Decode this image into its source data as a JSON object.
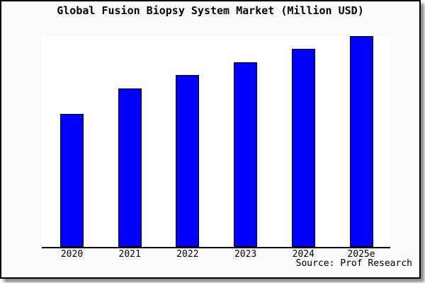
{
  "chart_data": {
    "type": "bar",
    "title": "Global Fusion Biopsy System Market (Million USD)",
    "categories": [
      "2020",
      "2021",
      "2022",
      "2023",
      "2024",
      "2025e"
    ],
    "values": [
      63,
      75.3,
      81.6,
      87.7,
      93.9,
      100
    ],
    "values_note": "No numeric y-axis shown in image; values are relative heights indexed to 2025e = 100",
    "xlabel": "",
    "ylabel": "",
    "ylim": [
      0,
      100.3
    ],
    "grid": false,
    "legend": false,
    "source": "Source: Prof Research"
  },
  "colors": {
    "bar_fill": "#0000ff",
    "bar_border": "#000000",
    "frame_background": "#fafafa",
    "plot_background": "#ffffff",
    "axis_line": "#000000",
    "text": "#000000",
    "frame_border": "#000000",
    "shadow": "#8f8f8f"
  }
}
